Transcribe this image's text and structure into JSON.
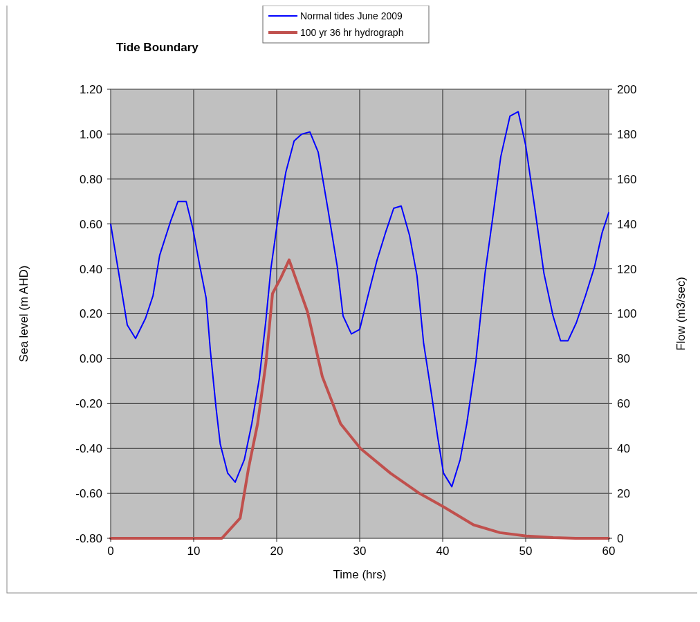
{
  "chart_data": {
    "type": "line",
    "title": "Tide Boundary",
    "xlabel": "Time (hrs)",
    "ylabel": "Sea level (m AHD)",
    "y2label": "Flow (m3/sec)",
    "xlim": [
      0,
      60
    ],
    "xticks": [
      0,
      10,
      20,
      30,
      40,
      50,
      60
    ],
    "ylim": [
      -0.8,
      1.2
    ],
    "yticks": [
      {
        "value": -0.8,
        "label": "-0.80"
      },
      {
        "value": -0.6,
        "label": "-0.60"
      },
      {
        "value": -0.4,
        "label": "-0.40"
      },
      {
        "value": -0.2,
        "label": "-0.20"
      },
      {
        "value": 0,
        "label": "0.00"
      },
      {
        "value": 0.2,
        "label": "0.20"
      },
      {
        "value": 0.4,
        "label": "0.40"
      },
      {
        "value": 0.6,
        "label": "0.60"
      },
      {
        "value": 0.8,
        "label": "0.80"
      },
      {
        "value": 1.0,
        "label": "1.00"
      },
      {
        "value": 1.2,
        "label": "1.20"
      }
    ],
    "y2lim": [
      0,
      200
    ],
    "y2ticks": [
      0,
      20,
      40,
      60,
      80,
      100,
      120,
      140,
      160,
      180,
      200
    ],
    "grid": true,
    "legend": "top",
    "marker": "none",
    "series": [
      {
        "name": "Normal tides June 2009",
        "color": "#0000ff",
        "x": [
          0,
          0.8,
          2,
          3,
          4.2,
          5.1,
          5.9,
          7.2,
          8.1,
          9.1,
          9.9,
          10.7,
          11.5,
          12,
          12.7,
          13.2,
          14.1,
          15,
          16.1,
          17,
          17.9,
          18.7,
          19.3,
          20.1,
          21.1,
          22.1,
          23,
          24,
          25,
          26.2,
          27.3,
          28,
          29,
          30,
          31,
          32.1,
          33.1,
          34.1,
          35,
          36,
          36.9,
          37.7,
          38.7,
          39.4,
          40.1,
          41.1,
          42.1,
          42.9,
          44,
          45.1,
          46,
          47,
          48.1,
          49.1,
          50,
          51.1,
          52.2,
          53.3,
          54.2,
          55.1,
          56.1,
          57.2,
          58.3,
          59.2,
          60
        ],
        "values": [
          0.6,
          0.42,
          0.15,
          0.09,
          0.18,
          0.28,
          0.46,
          0.61,
          0.7,
          0.7,
          0.58,
          0.42,
          0.27,
          0.04,
          -0.22,
          -0.38,
          -0.51,
          -0.55,
          -0.45,
          -0.29,
          -0.09,
          0.17,
          0.4,
          0.61,
          0.83,
          0.97,
          1.0,
          1.01,
          0.92,
          0.66,
          0.41,
          0.19,
          0.11,
          0.13,
          0.28,
          0.44,
          0.56,
          0.67,
          0.68,
          0.55,
          0.37,
          0.07,
          -0.17,
          -0.35,
          -0.51,
          -0.57,
          -0.45,
          -0.29,
          -0.01,
          0.38,
          0.62,
          0.9,
          1.08,
          1.1,
          0.95,
          0.67,
          0.38,
          0.19,
          0.08,
          0.08,
          0.16,
          0.28,
          0.41,
          0.56,
          0.65
        ]
      },
      {
        "name": "100 yr 36 hr hydrograph",
        "color": "#c0504d",
        "axis": "y2",
        "x": [
          0,
          13.4,
          15.6,
          16.6,
          17.7,
          18.7,
          19.5,
          20.5,
          21.5,
          23.7,
          25.5,
          27.7,
          30.1,
          33.7,
          37.2,
          40.1,
          43.7,
          46.9,
          50.1,
          53.3,
          56,
          60
        ],
        "values": [
          0,
          0,
          9,
          31,
          51,
          78,
          109,
          116,
          124,
          101,
          72,
          51,
          40,
          29,
          20,
          14,
          6,
          2.5,
          1,
          0.3,
          0,
          0
        ]
      }
    ]
  }
}
